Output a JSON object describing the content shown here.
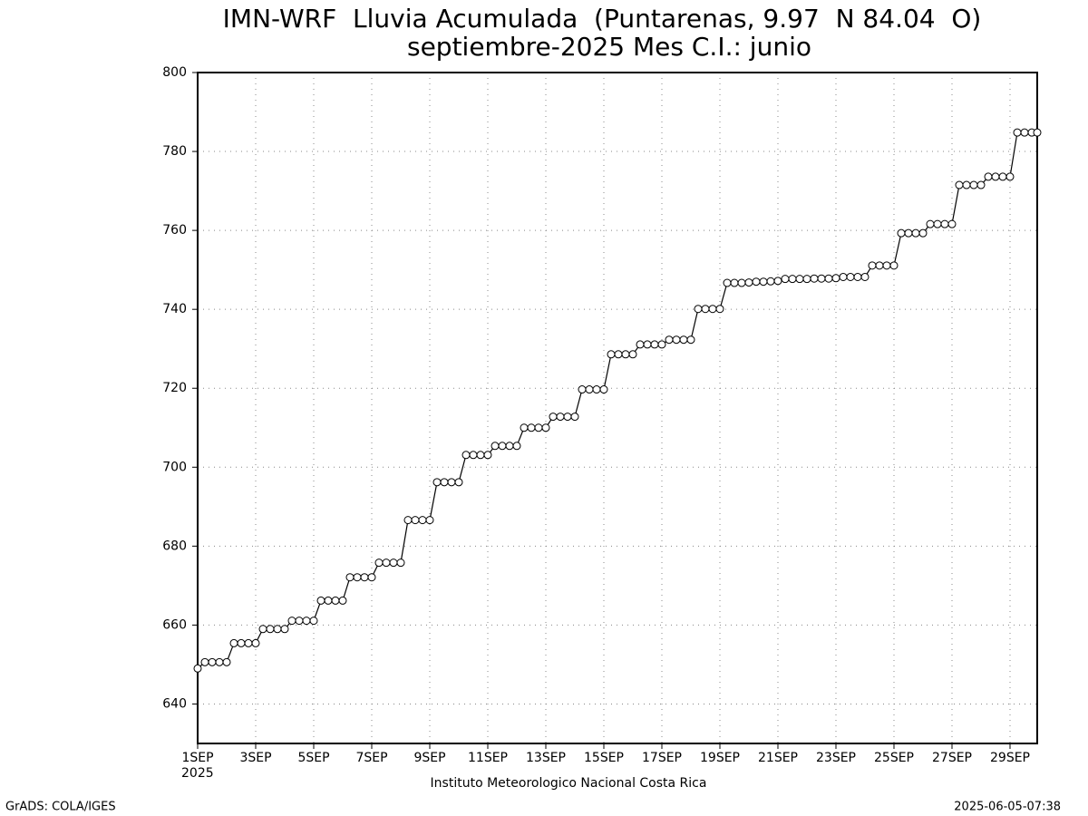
{
  "chart_data": {
    "type": "line",
    "title": "IMN-WRF  Lluvia Acumulada  (Puntarenas, 9.97  N 84.04  O)",
    "subtitle": "septiembre-2025 Mes C.I.: junio",
    "x_label": "Instituto Meteorologico Nacional Costa Rica",
    "x_year": "2025",
    "credit": "GrADS: COLA/IGES",
    "timestamp": "2025-06-05-07:38",
    "grid": true,
    "xlim": [
      1,
      30
    ],
    "ylim": [
      630,
      800
    ],
    "yticks": [
      640,
      660,
      680,
      700,
      720,
      740,
      760,
      780,
      800
    ],
    "xticks": [
      {
        "value": 1,
        "label": "1SEP"
      },
      {
        "value": 3,
        "label": "3SEP"
      },
      {
        "value": 5,
        "label": "5SEP"
      },
      {
        "value": 7,
        "label": "7SEP"
      },
      {
        "value": 9,
        "label": "9SEP"
      },
      {
        "value": 11,
        "label": "11SEP"
      },
      {
        "value": 13,
        "label": "13SEP"
      },
      {
        "value": 15,
        "label": "15SEP"
      },
      {
        "value": 17,
        "label": "17SEP"
      },
      {
        "value": 19,
        "label": "19SEP"
      },
      {
        "value": 21,
        "label": "21SEP"
      },
      {
        "value": 23,
        "label": "23SEP"
      },
      {
        "value": 25,
        "label": "25SEP"
      },
      {
        "value": 27,
        "label": "27SEP"
      },
      {
        "value": 29,
        "label": "29SEP"
      }
    ],
    "series": [
      {
        "color": "#000000",
        "x": [
          1,
          1.25,
          1.5,
          1.75,
          2,
          2.25,
          2.5,
          2.75,
          3,
          3.25,
          3.5,
          3.75,
          4,
          4.25,
          4.5,
          4.75,
          5,
          5.25,
          5.5,
          5.75,
          6,
          6.25,
          6.5,
          6.75,
          7,
          7.25,
          7.5,
          7.75,
          8,
          8.25,
          8.5,
          8.75,
          9,
          9.25,
          9.5,
          9.75,
          10,
          10.25,
          10.5,
          10.75,
          11,
          11.25,
          11.5,
          11.75,
          12,
          12.25,
          12.5,
          12.75,
          13,
          13.25,
          13.5,
          13.75,
          14,
          14.25,
          14.5,
          14.75,
          15,
          15.25,
          15.5,
          15.75,
          16,
          16.25,
          16.5,
          16.75,
          17,
          17.25,
          17.5,
          17.75,
          18,
          18.25,
          18.5,
          18.75,
          19,
          19.25,
          19.5,
          19.75,
          20,
          20.25,
          20.5,
          20.75,
          21,
          21.25,
          21.5,
          21.75,
          22,
          22.25,
          22.5,
          22.75,
          23,
          23.25,
          23.5,
          23.75,
          24,
          24.25,
          24.5,
          24.75,
          25,
          25.25,
          25.5,
          25.75,
          26,
          26.25,
          26.5,
          26.75,
          27,
          27.25,
          27.5,
          27.75,
          28,
          28.25,
          28.5,
          28.75,
          29,
          29.25,
          29.5,
          29.75,
          30
        ],
        "values": [
          649,
          650.6,
          650.6,
          650.6,
          650.6,
          655.4,
          655.4,
          655.4,
          655.4,
          659,
          659,
          659,
          659,
          661.1,
          661.1,
          661.1,
          661.1,
          666.2,
          666.2,
          666.2,
          666.2,
          672.1,
          672.1,
          672.1,
          672.1,
          675.8,
          675.8,
          675.8,
          675.8,
          686.6,
          686.6,
          686.6,
          686.6,
          696.2,
          696.2,
          696.2,
          696.2,
          703.1,
          703.1,
          703.1,
          703.1,
          705.4,
          705.4,
          705.4,
          705.4,
          710,
          710,
          710,
          710,
          712.8,
          712.8,
          712.8,
          712.8,
          719.7,
          719.7,
          719.7,
          719.7,
          728.6,
          728.6,
          728.6,
          728.6,
          731.1,
          731.1,
          731.1,
          731.1,
          732.3,
          732.3,
          732.3,
          732.3,
          740.1,
          740.1,
          740.1,
          740.1,
          746.7,
          746.7,
          746.7,
          746.8,
          747,
          747,
          747.1,
          747.2,
          747.7,
          747.7,
          747.7,
          747.7,
          747.8,
          747.8,
          747.8,
          747.9,
          748.2,
          748.2,
          748.2,
          748.2,
          751.1,
          751.1,
          751.1,
          751.1,
          759.3,
          759.3,
          759.3,
          759.3,
          761.6,
          761.6,
          761.6,
          761.6,
          771.5,
          771.5,
          771.5,
          771.5,
          773.6,
          773.6,
          773.6,
          773.6,
          784.8,
          784.8,
          784.8,
          784.8
        ]
      }
    ]
  }
}
